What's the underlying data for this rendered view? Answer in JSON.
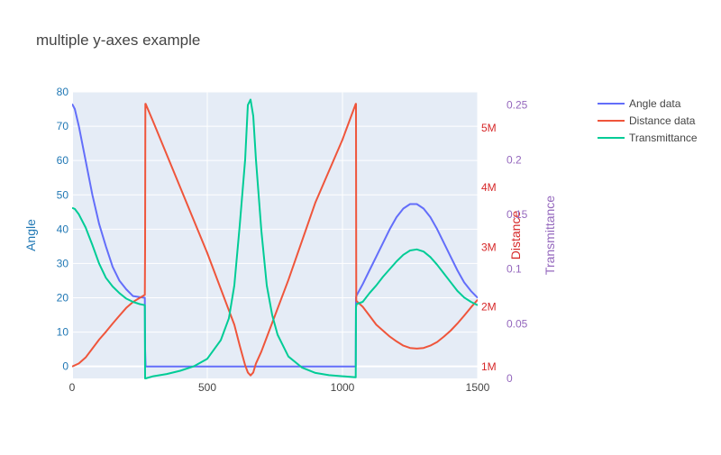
{
  "chart_data": {
    "type": "line",
    "title": "multiple y-axes example",
    "xlim": [
      0,
      1500
    ],
    "x_ticks": [
      0,
      500,
      1000,
      1500
    ],
    "axes": {
      "y": {
        "label": "Angle",
        "color": "#1f77b4",
        "range": [
          -3.5,
          80
        ],
        "ticks": [
          0,
          10,
          20,
          30,
          40,
          50,
          60,
          70,
          80
        ],
        "tick_labels": [
          "0",
          "10",
          "20",
          "30",
          "40",
          "50",
          "60",
          "70",
          "80"
        ]
      },
      "y2": {
        "label": "Distance",
        "color": "#d62728",
        "range": [
          800000,
          5600000
        ],
        "ticks": [
          1000000,
          2000000,
          3000000,
          4000000,
          5000000
        ],
        "tick_labels": [
          "1M",
          "2M",
          "3M",
          "4M",
          "5M"
        ]
      },
      "y3": {
        "label": "Transmittance",
        "color": "#9467bd",
        "range": [
          0,
          0.262
        ],
        "ticks": [
          0,
          0.05,
          0.1,
          0.15,
          0.2,
          0.25
        ],
        "tick_labels": [
          "0",
          "0.05",
          "0.1",
          "0.15",
          "0.2",
          "0.25"
        ]
      }
    },
    "series": [
      {
        "name": "Angle data",
        "color": "#636efa",
        "axis": "y",
        "x": [
          0,
          10,
          25,
          50,
          75,
          100,
          125,
          150,
          175,
          200,
          225,
          250,
          269,
          270,
          272,
          280,
          300,
          400,
          500,
          600,
          700,
          800,
          900,
          1000,
          1049,
          1050,
          1051,
          1075,
          1100,
          1125,
          1150,
          1175,
          1200,
          1225,
          1250,
          1275,
          1300,
          1325,
          1350,
          1375,
          1400,
          1425,
          1450,
          1475,
          1500
        ],
        "y": [
          76.5,
          75,
          70,
          60,
          50,
          41.5,
          35,
          29,
          25,
          22.5,
          20.5,
          20.2,
          20,
          5,
          0,
          0,
          0,
          0,
          0,
          0,
          0,
          0,
          0,
          0,
          0,
          20,
          20.5,
          24,
          28,
          32,
          36,
          40,
          43.5,
          46,
          47.3,
          47.3,
          46,
          43.5,
          40,
          36,
          32,
          28,
          24.5,
          22,
          20
        ]
      },
      {
        "name": "Distance data",
        "color": "#ef553b",
        "axis": "y2",
        "x": [
          0,
          25,
          50,
          75,
          100,
          125,
          150,
          175,
          200,
          225,
          250,
          269,
          270,
          271,
          272,
          300,
          400,
          500,
          600,
          620,
          640,
          650,
          660,
          670,
          680,
          700,
          800,
          900,
          1000,
          1049,
          1050,
          1051,
          1075,
          1100,
          1125,
          1150,
          1175,
          1200,
          1225,
          1250,
          1275,
          1300,
          1325,
          1350,
          1375,
          1400,
          1425,
          1450,
          1475,
          1500
        ],
        "y": [
          1000000,
          1050000,
          1150000,
          1300000,
          1450000,
          1580000,
          1720000,
          1850000,
          1980000,
          2080000,
          2150000,
          2200000,
          3000000,
          5400000,
          5400000,
          5100000,
          4000000,
          2900000,
          1700000,
          1350000,
          1020000,
          900000,
          850000,
          900000,
          1050000,
          1250000,
          2450000,
          3750000,
          4800000,
          5400000,
          5400000,
          2100000,
          2000000,
          1850000,
          1700000,
          1600000,
          1500000,
          1420000,
          1350000,
          1310000,
          1300000,
          1310000,
          1350000,
          1410000,
          1500000,
          1600000,
          1720000,
          1850000,
          1990000,
          2120000
        ]
      },
      {
        "name": "Transmittance",
        "color": "#00cc96",
        "axis": "y3",
        "x": [
          0,
          10,
          25,
          50,
          75,
          100,
          125,
          150,
          175,
          200,
          225,
          250,
          269,
          270,
          272,
          300,
          350,
          400,
          450,
          500,
          550,
          580,
          600,
          620,
          640,
          650,
          660,
          670,
          680,
          700,
          720,
          740,
          760,
          800,
          850,
          900,
          950,
          1000,
          1049,
          1050,
          1052,
          1075,
          1100,
          1125,
          1150,
          1175,
          1200,
          1225,
          1250,
          1275,
          1300,
          1325,
          1350,
          1375,
          1400,
          1425,
          1450,
          1475,
          1500
        ],
        "y": [
          0.156,
          0.155,
          0.15,
          0.138,
          0.122,
          0.105,
          0.092,
          0.084,
          0.078,
          0.073,
          0.07,
          0.068,
          0.067,
          0.0,
          0.0,
          0.002,
          0.004,
          0.007,
          0.011,
          0.018,
          0.035,
          0.055,
          0.085,
          0.14,
          0.2,
          0.25,
          0.255,
          0.24,
          0.2,
          0.135,
          0.085,
          0.058,
          0.04,
          0.02,
          0.01,
          0.005,
          0.003,
          0.002,
          0.001,
          0.065,
          0.068,
          0.07,
          0.078,
          0.085,
          0.093,
          0.1,
          0.107,
          0.113,
          0.117,
          0.118,
          0.116,
          0.111,
          0.104,
          0.096,
          0.088,
          0.08,
          0.074,
          0.07,
          0.067
        ]
      }
    ],
    "legend": {
      "placement": "top-right outside"
    },
    "grid": true
  }
}
